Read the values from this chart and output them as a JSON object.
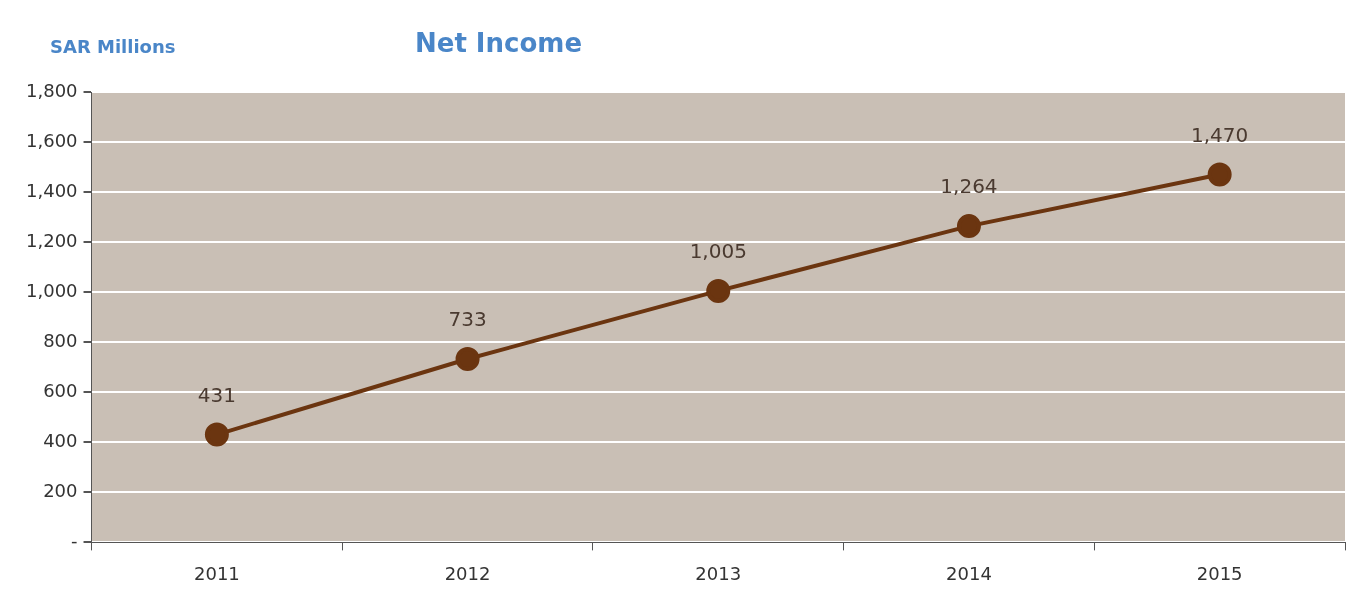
{
  "chart_data": {
    "type": "line",
    "title": "Net Income",
    "ylabel": "SAR Millions",
    "categories": [
      "2011",
      "2012",
      "2013",
      "2014",
      "2015"
    ],
    "series": [
      {
        "color": "#6b3510",
        "values": [
          431,
          733,
          1005,
          1264,
          1470
        ],
        "value_labels": [
          "431",
          "733",
          "1,005",
          "1,264",
          "1,470"
        ]
      }
    ],
    "ylim": [
      0,
      1800
    ],
    "yticks": [
      {
        "value": 0,
        "label": "-"
      },
      {
        "value": 200,
        "label": "200"
      },
      {
        "value": 400,
        "label": "400"
      },
      {
        "value": 600,
        "label": "600"
      },
      {
        "value": 800,
        "label": "800"
      },
      {
        "value": 1000,
        "label": "1,000"
      },
      {
        "value": 1200,
        "label": "1,200"
      },
      {
        "value": 1400,
        "label": "1,400"
      },
      {
        "value": 1600,
        "label": "1,600"
      },
      {
        "value": 1800,
        "label": "1,800"
      }
    ],
    "grid": "y",
    "legend": false,
    "marker": "circle",
    "line_style": "solid"
  }
}
